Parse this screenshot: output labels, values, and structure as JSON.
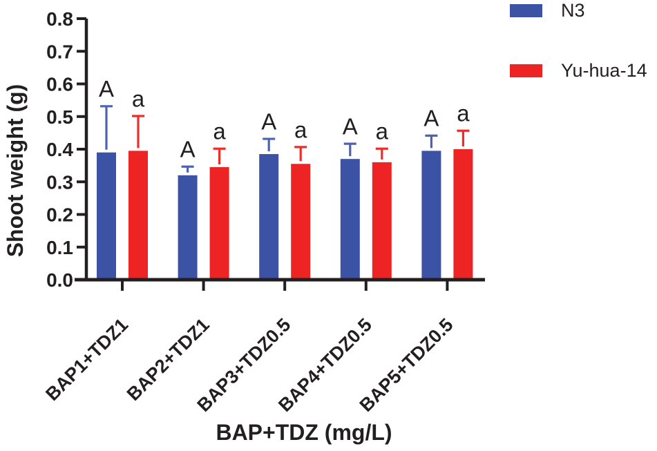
{
  "chart_data": {
    "type": "bar",
    "title": "",
    "xlabel": "BAP+TDZ (mg/L)",
    "ylabel": "Shoot weight (g)",
    "ylim": [
      0,
      0.8
    ],
    "ytick_step": 0.1,
    "grid": false,
    "legend_position": "top-right",
    "axis_color": "#231F20",
    "categories": [
      "BAP1+TDZ1",
      "BAP2+TDZ1",
      "BAP3+TDZ0.5",
      "BAP4+TDZ0.5",
      "BAP5+TDZ0.5"
    ],
    "series": [
      {
        "name": "N3",
        "color": "#3B52A5",
        "error_color": "#4D62B2",
        "values": [
          0.39,
          0.32,
          0.385,
          0.37,
          0.395
        ],
        "errors_plus": [
          0.145,
          0.03,
          0.05,
          0.05,
          0.05
        ],
        "letters": [
          "A",
          "A",
          "A",
          "A",
          "A"
        ]
      },
      {
        "name": "Yu-hua-14",
        "color": "#EE2424",
        "error_color": "#EF2D28",
        "values": [
          0.395,
          0.345,
          0.355,
          0.36,
          0.4
        ],
        "errors_plus": [
          0.11,
          0.06,
          0.055,
          0.045,
          0.06
        ],
        "letters": [
          "a",
          "a",
          "a",
          "a",
          "a"
        ]
      }
    ]
  }
}
